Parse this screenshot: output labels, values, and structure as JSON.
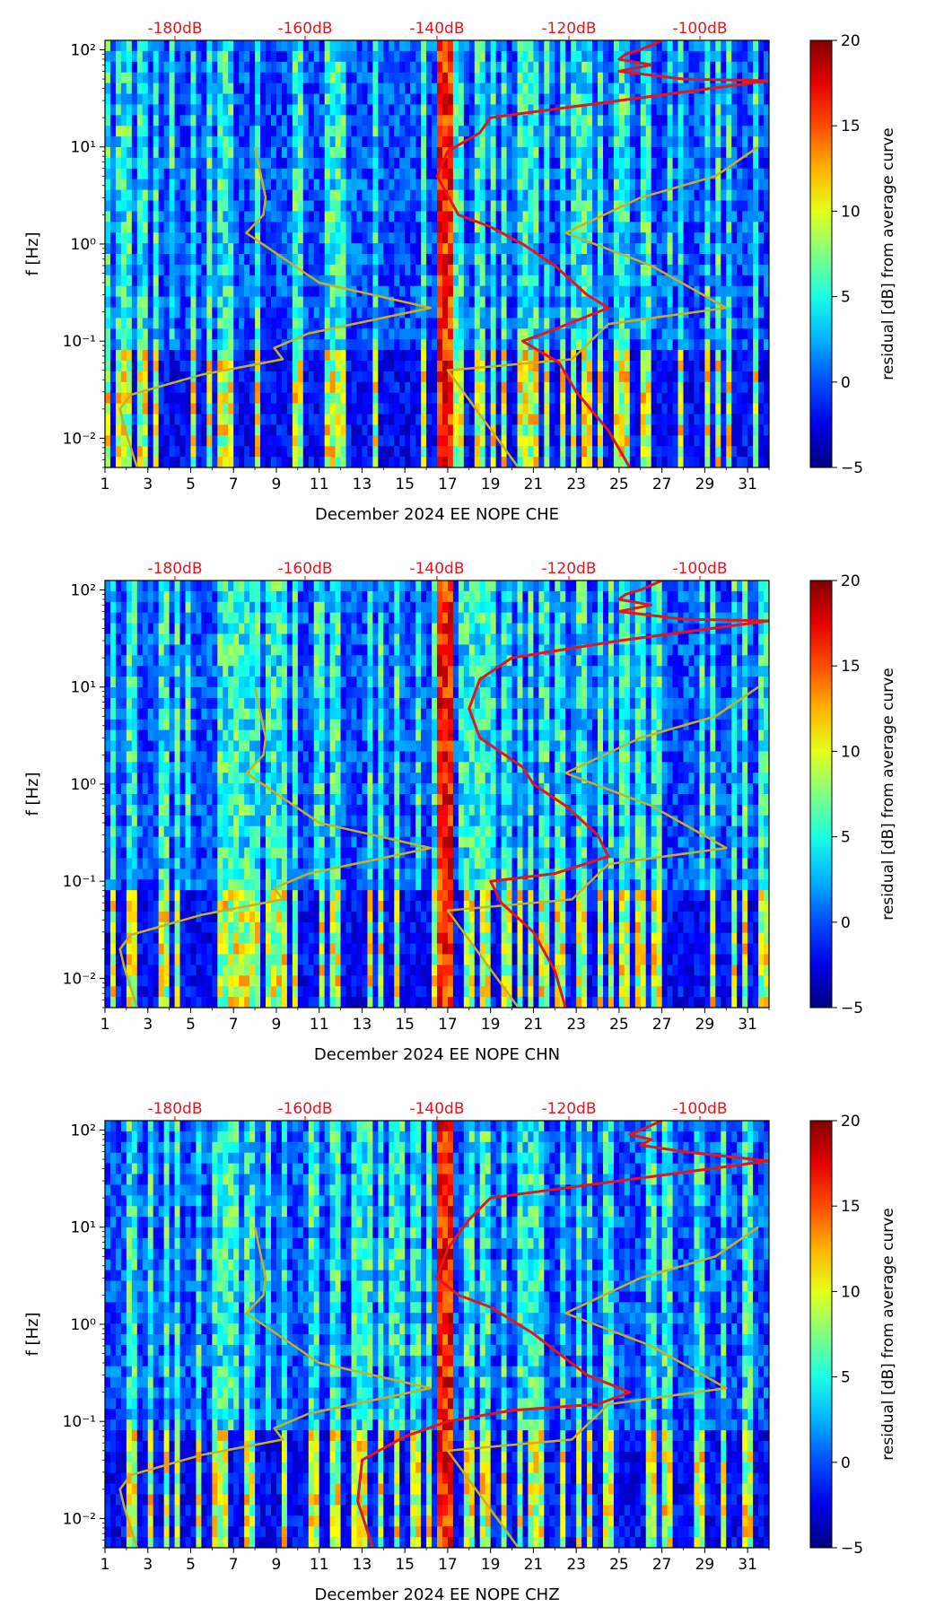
{
  "chart_data": [
    {
      "type": "heatmap",
      "xlabel": "December 2024 EE NOPE  CHE",
      "ylabel": "f [Hz]",
      "x_ticks": [
        "1",
        "3",
        "5",
        "7",
        "9",
        "11",
        "13",
        "15",
        "17",
        "19",
        "21",
        "23",
        "25",
        "27",
        "29",
        "31"
      ],
      "xlim": [
        1,
        32
      ],
      "y_ticks": [
        "10⁻²",
        "10⁻¹",
        "10⁰",
        "10¹",
        "10²"
      ],
      "ylim": [
        0.005,
        125
      ],
      "top_ticks": [
        "-180dB",
        "-160dB",
        "-140dB",
        "-120dB",
        "-100dB"
      ],
      "colorbar": {
        "label": "residual [dB] from average curve",
        "range": [
          -5,
          20
        ],
        "ticks": [
          "20",
          "15",
          "10",
          "5",
          "0",
          "−5"
        ]
      },
      "series": [
        {
          "name": "NLNM/NHNM model (yellow)",
          "x": [
            8,
            8.5,
            8.4,
            7.6,
            11,
            16.2,
            10.5,
            8.9,
            9.3,
            5.5,
            2.2,
            1.7,
            1.9,
            2.5
          ],
          "y": [
            10,
            3,
            2,
            1.3,
            0.4,
            0.22,
            0.12,
            0.085,
            0.065,
            0.045,
            0.028,
            0.02,
            0.013,
            0.005
          ]
        },
        {
          "name": "NHNM (yellow, right)",
          "x": [
            31.5,
            29.5,
            26,
            22.5,
            26.5,
            30,
            24.5,
            22.8,
            17,
            20.3
          ],
          "y": [
            10,
            5,
            3,
            1.3,
            0.6,
            0.22,
            0.15,
            0.065,
            0.05,
            0.005
          ]
        },
        {
          "name": "average PSD (red)",
          "x": [
            27,
            26,
            25.3,
            25,
            26.5,
            25,
            28,
            32,
            25,
            19,
            18.5,
            17,
            16.5,
            17.5,
            19,
            20.5,
            22,
            23.5,
            24.5,
            21.5,
            20.5,
            22.2,
            23,
            24.5,
            25.5
          ],
          "y": [
            125,
            100,
            90,
            80,
            70,
            60,
            50,
            48,
            30,
            20,
            14,
            9,
            5,
            2,
            1.5,
            1,
            0.6,
            0.3,
            0.22,
            0.12,
            0.1,
            0.06,
            0.03,
            0.012,
            0.005
          ]
        }
      ],
      "bright_bands_days": [
        16.5,
        17.2
      ]
    },
    {
      "type": "heatmap",
      "xlabel": "December 2024 EE NOPE  CHN",
      "ylabel": "f [Hz]",
      "x_ticks": [
        "1",
        "3",
        "5",
        "7",
        "9",
        "11",
        "13",
        "15",
        "17",
        "19",
        "21",
        "23",
        "25",
        "27",
        "29",
        "31"
      ],
      "xlim": [
        1,
        32
      ],
      "y_ticks": [
        "10⁻²",
        "10⁻¹",
        "10⁰",
        "10¹",
        "10²"
      ],
      "ylim": [
        0.005,
        125
      ],
      "top_ticks": [
        "-180dB",
        "-160dB",
        "-140dB",
        "-120dB",
        "-100dB"
      ],
      "colorbar": {
        "label": "residual [dB] from average curve",
        "range": [
          -5,
          20
        ],
        "ticks": [
          "20",
          "15",
          "10",
          "5",
          "0",
          "−5"
        ]
      },
      "series": [
        {
          "name": "NLNM/NHNM model (yellow)",
          "x": [
            8,
            8.5,
            8.4,
            7.6,
            11,
            16.2,
            10.5,
            8.9,
            9.3,
            5.5,
            2.2,
            1.7,
            1.9,
            2.5
          ],
          "y": [
            10,
            3,
            2,
            1.3,
            0.4,
            0.22,
            0.12,
            0.085,
            0.065,
            0.045,
            0.028,
            0.02,
            0.013,
            0.005
          ]
        },
        {
          "name": "NHNM (yellow, right)",
          "x": [
            31.5,
            29.5,
            26,
            22.5,
            26.5,
            30,
            24.5,
            22.8,
            17,
            20.3
          ],
          "y": [
            10,
            5,
            3,
            1.3,
            0.6,
            0.22,
            0.15,
            0.065,
            0.05,
            0.005
          ]
        },
        {
          "name": "average PSD (red)",
          "x": [
            27,
            26,
            25.3,
            25,
            26.5,
            25,
            28,
            32,
            25,
            20,
            18.5,
            18,
            18.5,
            20.5,
            21,
            22.5,
            24,
            24.5,
            22,
            19,
            19.5,
            21,
            22,
            22.5
          ],
          "y": [
            125,
            100,
            90,
            80,
            70,
            60,
            50,
            48,
            30,
            20,
            12,
            6,
            3,
            1.5,
            1,
            0.6,
            0.3,
            0.18,
            0.12,
            0.1,
            0.06,
            0.03,
            0.012,
            0.005
          ]
        }
      ],
      "bright_bands_days": [
        16.5,
        17.3
      ]
    },
    {
      "type": "heatmap",
      "xlabel": "December 2024 EE NOPE  CHZ",
      "ylabel": "f [Hz]",
      "x_ticks": [
        "1",
        "3",
        "5",
        "7",
        "9",
        "11",
        "13",
        "15",
        "17",
        "19",
        "21",
        "23",
        "25",
        "27",
        "29",
        "31"
      ],
      "xlim": [
        1,
        32
      ],
      "y_ticks": [
        "10⁻²",
        "10⁻¹",
        "10⁰",
        "10¹",
        "10²"
      ],
      "ylim": [
        0.005,
        125
      ],
      "top_ticks": [
        "-180dB",
        "-160dB",
        "-140dB",
        "-120dB",
        "-100dB"
      ],
      "colorbar": {
        "label": "residual [dB] from average curve",
        "range": [
          -5,
          20
        ],
        "ticks": [
          "20",
          "15",
          "10",
          "5",
          "0",
          "−5"
        ]
      },
      "series": [
        {
          "name": "NLNM/NHNM model (yellow)",
          "x": [
            8,
            8.5,
            8.4,
            7.6,
            11,
            16.2,
            10.5,
            8.9,
            9.3,
            5.5,
            2.2,
            1.7,
            1.9,
            2.5
          ],
          "y": [
            10,
            3,
            2,
            1.3,
            0.4,
            0.22,
            0.12,
            0.085,
            0.065,
            0.045,
            0.028,
            0.02,
            0.013,
            0.005
          ]
        },
        {
          "name": "NHNM (yellow, right)",
          "x": [
            31.5,
            29.5,
            26,
            22.5,
            26.5,
            30,
            24.5,
            22.8,
            17,
            20.3
          ],
          "y": [
            10,
            5,
            3,
            1.3,
            0.6,
            0.22,
            0.15,
            0.065,
            0.05,
            0.005
          ]
        },
        {
          "name": "average PSD (red)",
          "x": [
            27,
            26,
            25.5,
            26.5,
            26,
            28,
            32,
            25,
            19,
            18,
            17,
            16.5,
            17.5,
            19,
            21,
            23.5,
            25.5,
            24,
            20,
            17,
            15,
            13,
            12.8,
            13.5
          ],
          "y": [
            125,
            100,
            90,
            80,
            70,
            60,
            48,
            30,
            20,
            12,
            6,
            3,
            2,
            1.5,
            0.8,
            0.3,
            0.2,
            0.15,
            0.13,
            0.1,
            0.07,
            0.04,
            0.015,
            0.005
          ]
        }
      ],
      "bright_bands_days": [
        16.6,
        17.2
      ]
    }
  ]
}
